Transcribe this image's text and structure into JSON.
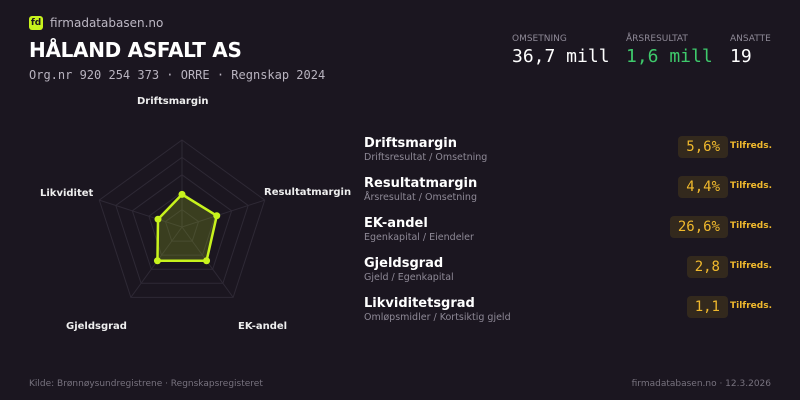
{
  "brand": {
    "logo": "fd",
    "site": "firmadatabasen.no"
  },
  "company": {
    "name": "HÅLAND ASFALT  AS",
    "subtitle": "Org.nr 920 254 373  ·  ORRE  ·  Regnskap 2024"
  },
  "kpis": [
    {
      "label": "OMSETNING",
      "value": "36,7 mill",
      "color": "#ffffff"
    },
    {
      "label": "ÅRSRESULTAT",
      "value": "1,6 mill",
      "color": "#3ec96b"
    },
    {
      "label": "ANSATTE",
      "value": "19",
      "color": "#ffffff"
    }
  ],
  "chart_data": {
    "type": "radar",
    "axes": [
      "Driftsmargin",
      "Resultatmargin",
      "EK-andel",
      "Gjeldsgrad",
      "Likviditet"
    ],
    "scores": [
      0.375,
      0.42,
      0.48,
      0.48,
      0.29
    ],
    "range": [
      0,
      1
    ],
    "rings": 5,
    "color": "#c8f31d"
  },
  "metrics": [
    {
      "name": "Driftsmargin",
      "formula": "Driftsresultat / Omsetning",
      "value": "5,6%",
      "status": "Tilfreds."
    },
    {
      "name": "Resultatmargin",
      "formula": "Årsresultat / Omsetning",
      "value": "4,4%",
      "status": "Tilfreds."
    },
    {
      "name": "EK-andel",
      "formula": "Egenkapital / Eiendeler",
      "value": "26,6%",
      "status": "Tilfreds."
    },
    {
      "name": "Gjeldsgrad",
      "formula": "Gjeld / Egenkapital",
      "value": "2,8",
      "status": "Tilfreds."
    },
    {
      "name": "Likviditetsgrad",
      "formula": "Omløpsmidler / Kortsiktig gjeld",
      "value": "1,1",
      "status": "Tilfreds."
    }
  ],
  "footer": {
    "source": "Kilde: Brønnøysundregistrene · Regnskapsregisteret",
    "right": "firmadatabasen.no · 12.3.2026"
  }
}
